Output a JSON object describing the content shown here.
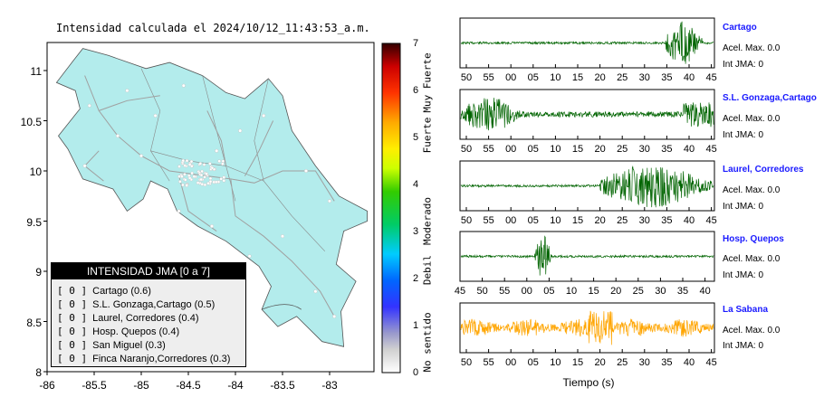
{
  "map": {
    "title": "Intensidad calculada el 2024/10/12_11:43:53_a.m.",
    "x_ticks": [
      "-86",
      "-85.5",
      "-85",
      "-84.5",
      "-84",
      "-83.5",
      "-83"
    ],
    "y_ticks": [
      "11",
      "10.5",
      "10",
      "9.5",
      "9",
      "8.5",
      "8"
    ],
    "land_color": "#b3ecec",
    "legend": {
      "header": "INTENSIDAD JMA [0 a 7]",
      "items": [
        {
          "level": "[ 0 ]",
          "text": "Cartago (0.6)"
        },
        {
          "level": "[ 0 ]",
          "text": "S.L. Gonzaga,Cartago (0.5)"
        },
        {
          "level": "[ 0 ]",
          "text": "Laurel, Corredores (0.4)"
        },
        {
          "level": "[ 0 ]",
          "text": "Hosp. Quepos (0.4)"
        },
        {
          "level": "[ 0 ]",
          "text": "San Miguel (0.3)"
        },
        {
          "level": "[ 0 ]",
          "text": "Finca Naranjo,Corredores (0.3)"
        }
      ]
    }
  },
  "colorbar": {
    "ticks": [
      "7",
      "6",
      "5",
      "4",
      "3",
      "2",
      "1",
      "0"
    ],
    "words": [
      "Muy Fuerte",
      "Fuerte",
      "Moderado",
      "Debil",
      "No sentido"
    ]
  },
  "waveforms": {
    "xlabel": "Tiempo (s)",
    "stations": [
      {
        "name": "Cartago",
        "acc": "Acel. Max. 0.0",
        "int": "Int JMA: 0",
        "color": "#006400",
        "ticks": [
          "50",
          "55",
          "00",
          "05",
          "10",
          "15",
          "20",
          "25",
          "30",
          "35",
          "40",
          "45"
        ]
      },
      {
        "name": "S.L. Gonzaga,Cartago",
        "acc": "Acel. Max. 0.0",
        "int": "Int JMA: 0",
        "color": "#006400",
        "ticks": [
          "50",
          "55",
          "00",
          "05",
          "10",
          "15",
          "20",
          "25",
          "30",
          "35",
          "40",
          "45"
        ]
      },
      {
        "name": "Laurel, Corredores",
        "acc": "Acel. Max. 0.0",
        "int": "Int JMA: 0",
        "color": "#006400",
        "ticks": [
          "50",
          "55",
          "00",
          "05",
          "10",
          "15",
          "20",
          "25",
          "30",
          "35",
          "40",
          "45"
        ]
      },
      {
        "name": "Hosp. Quepos",
        "acc": "Acel. Max. 0.0",
        "int": "Int JMA: 0",
        "color": "#006400",
        "ticks": [
          "45",
          "50",
          "55",
          "00",
          "05",
          "10",
          "15",
          "20",
          "25",
          "30",
          "35",
          "40"
        ]
      },
      {
        "name": "La Sabana",
        "acc": "Acel. Max. 0.0",
        "int": "Int JMA: 0",
        "color": "#ffa500",
        "ticks": [
          "50",
          "55",
          "00",
          "05",
          "10",
          "15",
          "20",
          "25",
          "30",
          "35",
          "40",
          "45"
        ]
      }
    ]
  },
  "chart_data": [
    {
      "type": "heatmap",
      "title": "Intensidad calculada el 2024/10/12_11:43:53_a.m.",
      "xlabel": "",
      "ylabel": "",
      "xlim": [
        -86,
        -82.5
      ],
      "ylim": [
        8,
        11.3
      ],
      "legend_placement": "bottom-left",
      "series": [
        {
          "name": "Cartago",
          "value": 0.6
        },
        {
          "name": "S.L. Gonzaga,Cartago",
          "value": 0.5
        },
        {
          "name": "Laurel, Corredores",
          "value": 0.4
        },
        {
          "name": "Hosp. Quepos",
          "value": 0.4
        },
        {
          "name": "San Miguel",
          "value": 0.3
        },
        {
          "name": "Finca Naranjo,Corredores",
          "value": 0.3
        }
      ],
      "colorbar_range": [
        0,
        7
      ]
    },
    {
      "type": "line",
      "xlabel": "Tiempo (s)",
      "series": [
        {
          "name": "Cartago",
          "peak_region": [
            38,
            46
          ]
        },
        {
          "name": "S.L. Gonzaga,Cartago",
          "peak_region": [
            46,
            55
          ]
        },
        {
          "name": "Laurel, Corredores",
          "peak_region": [
            28,
            45
          ]
        },
        {
          "name": "Hosp. Quepos",
          "peak_region": [
            2,
            6
          ]
        },
        {
          "name": "La Sabana",
          "peak_region": [
            18,
            22
          ]
        }
      ]
    }
  ]
}
